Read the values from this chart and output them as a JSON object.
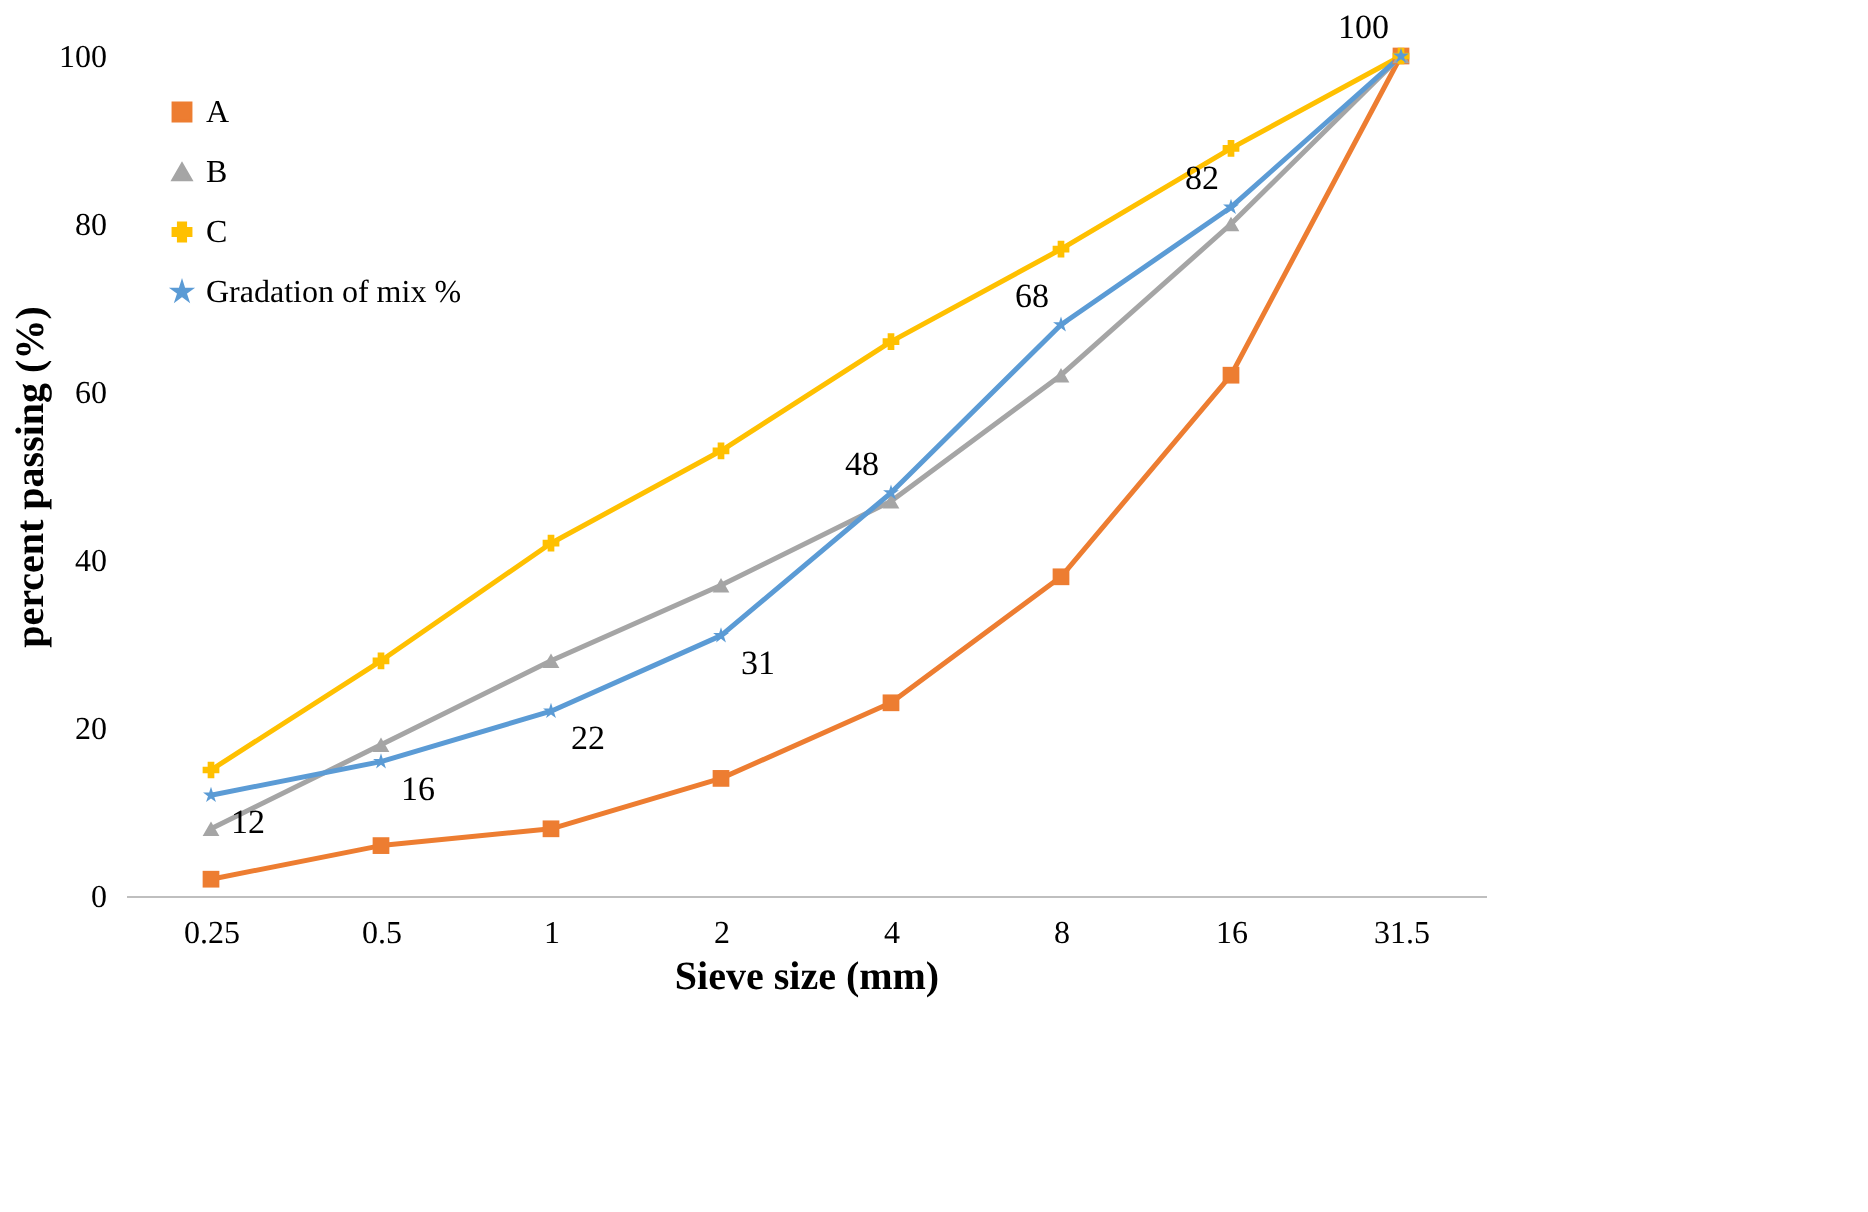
{
  "chart_data": {
    "type": "line",
    "xlabel": "Sieve size (mm)",
    "ylabel": "percent passing (%)",
    "categories": [
      "0.25",
      "0.5",
      "1",
      "2",
      "4",
      "8",
      "16",
      "31.5"
    ],
    "ylim": [
      0,
      100
    ],
    "yticks": [
      0,
      20,
      40,
      60,
      80,
      100
    ],
    "grid": false,
    "legend": "top left",
    "series": [
      {
        "name": "A",
        "color": "#ed7d31",
        "marker": "square",
        "values": [
          2,
          6,
          8,
          14,
          23,
          38,
          62,
          100
        ]
      },
      {
        "name": "B",
        "color": "#a5a5a5",
        "marker": "triangle",
        "values": [
          8,
          18,
          28,
          37,
          47,
          62,
          80,
          100
        ]
      },
      {
        "name": "C",
        "color": "#ffc000",
        "marker": "cross",
        "values": [
          15,
          28,
          42,
          53,
          66,
          77,
          89,
          100
        ]
      },
      {
        "name": "Gradation of mix %",
        "color": "#5b9bd5",
        "marker": "star",
        "values": [
          12,
          16,
          22,
          31,
          48,
          68,
          82,
          100
        ],
        "value_labels": [
          "12",
          "16",
          "22",
          "31",
          "48",
          "68",
          "82",
          "100"
        ]
      }
    ]
  }
}
